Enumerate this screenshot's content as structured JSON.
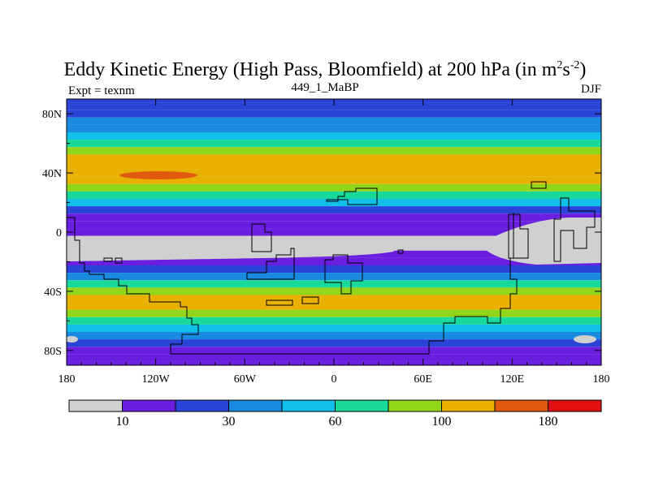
{
  "chart_data": {
    "type": "heatmap",
    "title_main": "Eddy Kinetic Energy (High Pass, Bloomfield) at 200 hPa (in m",
    "title_exp1": "2",
    "title_mid": "s",
    "title_exp2": "-2",
    "title_end": ")",
    "subtitle": "449_1_MaBP",
    "left_label": "Expt = texnm",
    "right_label": "DJF",
    "xlim": [
      -180,
      180
    ],
    "ylim": [
      -90,
      90
    ],
    "x_ticks": [
      {
        "value": -180,
        "label": "180"
      },
      {
        "value": -120,
        "label": "120W"
      },
      {
        "value": -60,
        "label": "60W"
      },
      {
        "value": 0,
        "label": "0"
      },
      {
        "value": 60,
        "label": "60E"
      },
      {
        "value": 120,
        "label": "120E"
      },
      {
        "value": 180,
        "label": "180"
      }
    ],
    "y_ticks": [
      {
        "value": 80,
        "label": "80N"
      },
      {
        "value": 40,
        "label": "40N"
      },
      {
        "value": 0,
        "label": "0"
      },
      {
        "value": -40,
        "label": "40S"
      },
      {
        "value": -80,
        "label": "80S"
      }
    ],
    "levels": [
      0,
      10,
      20,
      30,
      45,
      60,
      80,
      100,
      140,
      180,
      220
    ],
    "colors": [
      "#d0d0d0",
      "#6a1ee0",
      "#2a44d8",
      "#1a8ae0",
      "#10c0e8",
      "#18d89a",
      "#92d61c",
      "#e8b000",
      "#e05a10",
      "#e01010"
    ],
    "colorbar_labels": [
      {
        "index": 1,
        "label": "10"
      },
      {
        "index": 3,
        "label": "30"
      },
      {
        "index": 5,
        "label": "60"
      },
      {
        "index": 7,
        "label": "100"
      },
      {
        "index": 9,
        "label": "180"
      }
    ],
    "latitude_profile": [
      {
        "lat": 90,
        "value": 22
      },
      {
        "lat": 85,
        "value": 20
      },
      {
        "lat": 80,
        "value": 24
      },
      {
        "lat": 75,
        "value": 32
      },
      {
        "lat": 70,
        "value": 42
      },
      {
        "lat": 65,
        "value": 58
      },
      {
        "lat": 60,
        "value": 75
      },
      {
        "lat": 55,
        "value": 92
      },
      {
        "lat": 50,
        "value": 110
      },
      {
        "lat": 45,
        "value": 130
      },
      {
        "lat": 40,
        "value": 135
      },
      {
        "lat": 35,
        "value": 120
      },
      {
        "lat": 30,
        "value": 95
      },
      {
        "lat": 25,
        "value": 70
      },
      {
        "lat": 20,
        "value": 45
      },
      {
        "lat": 15,
        "value": 25
      },
      {
        "lat": 10,
        "value": 14
      },
      {
        "lat": 5,
        "value": 10
      },
      {
        "lat": 0,
        "value": 12
      },
      {
        "lat": -5,
        "value": 8
      },
      {
        "lat": -10,
        "value": 6
      },
      {
        "lat": -15,
        "value": 10
      },
      {
        "lat": -20,
        "value": 14
      },
      {
        "lat": -25,
        "value": 20
      },
      {
        "lat": -30,
        "value": 35
      },
      {
        "lat": -35,
        "value": 60
      },
      {
        "lat": -40,
        "value": 92
      },
      {
        "lat": -45,
        "value": 125
      },
      {
        "lat": -50,
        "value": 115
      },
      {
        "lat": -55,
        "value": 88
      },
      {
        "lat": -60,
        "value": 60
      },
      {
        "lat": -65,
        "value": 45
      },
      {
        "lat": -70,
        "value": 30
      },
      {
        "lat": -75,
        "value": 22
      },
      {
        "lat": -80,
        "value": 18
      },
      {
        "lat": -85,
        "value": 14
      },
      {
        "lat": -90,
        "value": 11
      }
    ]
  }
}
